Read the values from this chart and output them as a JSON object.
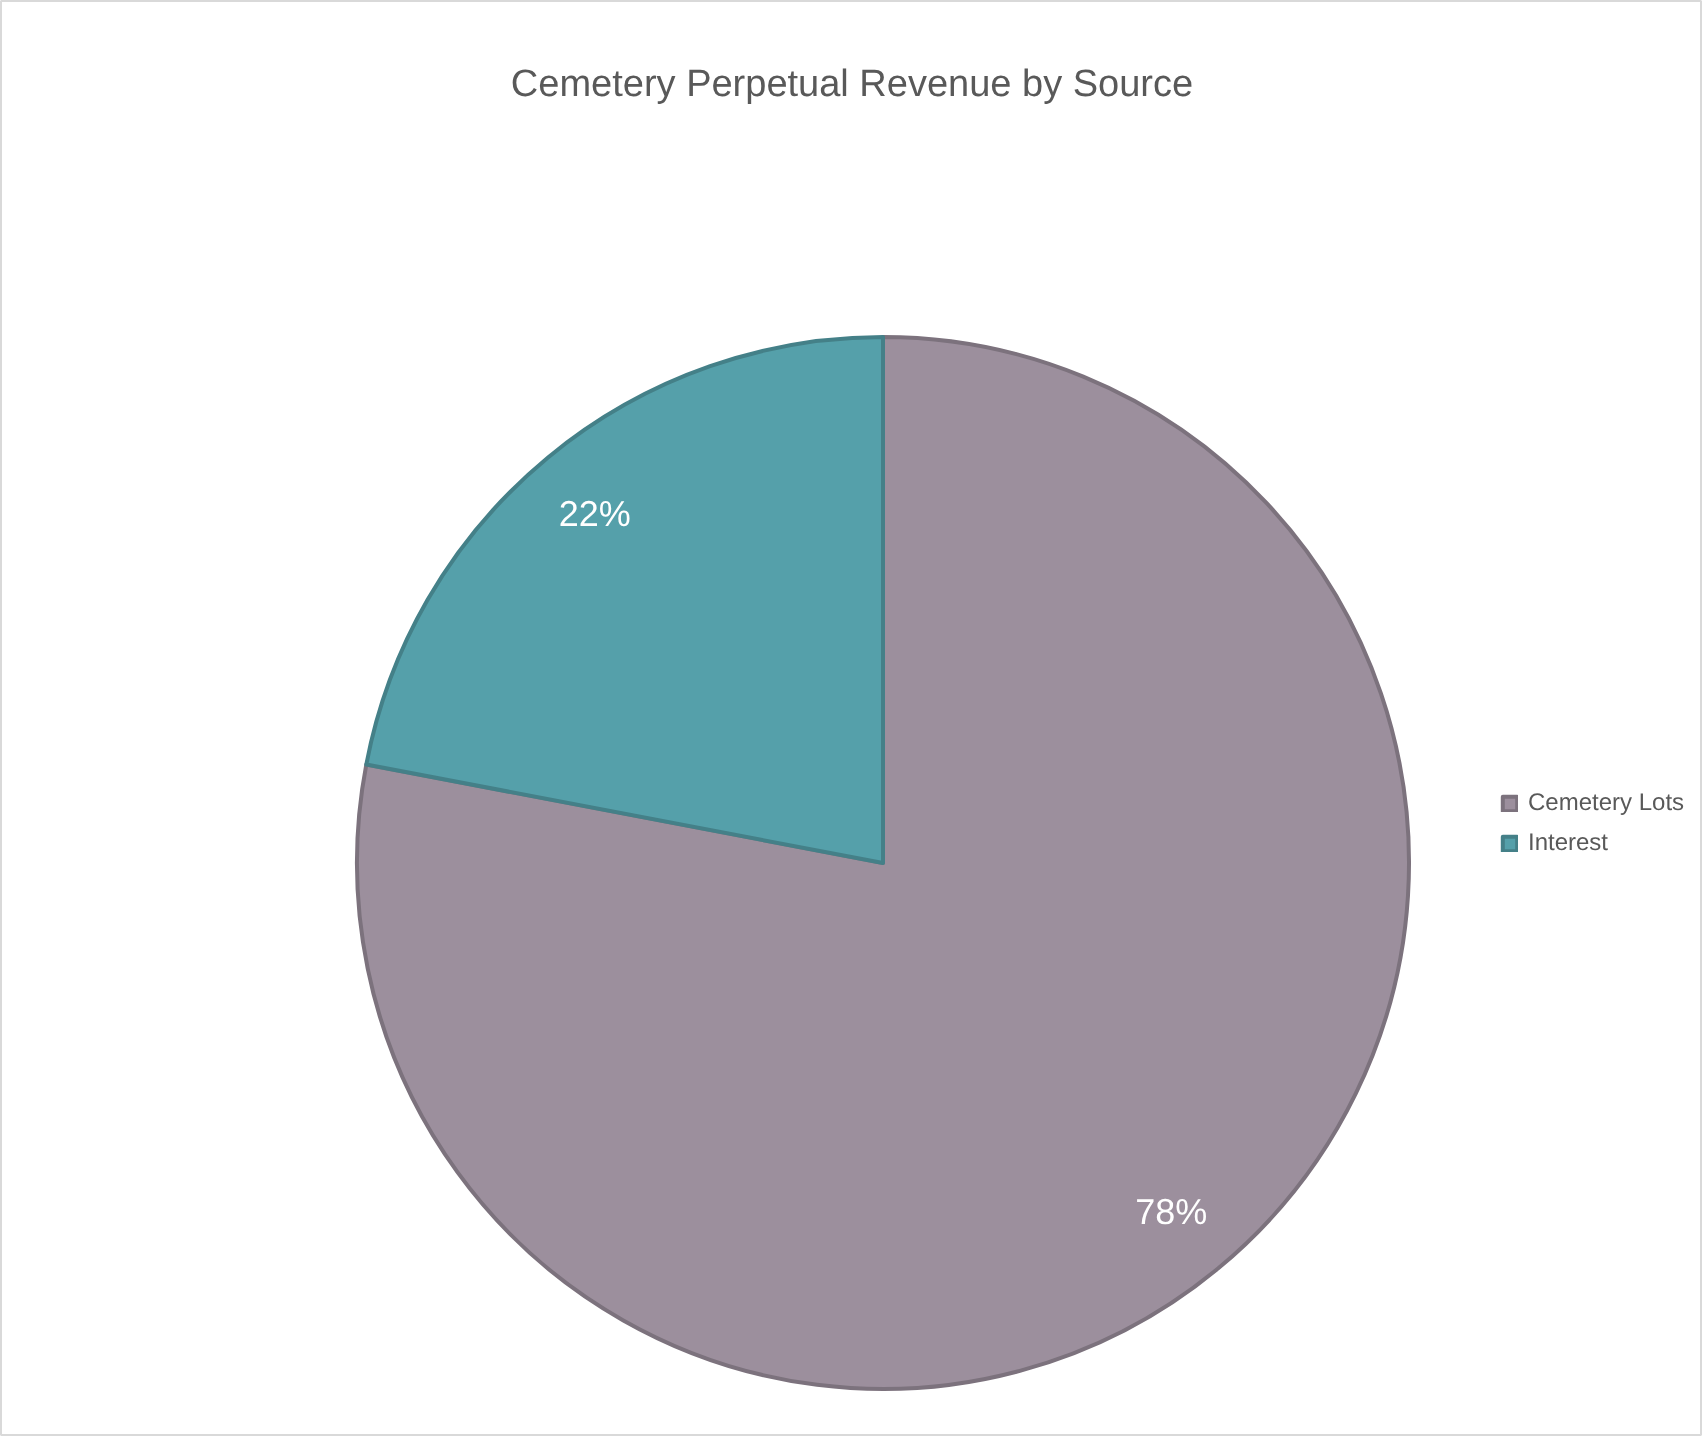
{
  "chart_data": {
    "type": "pie",
    "title": "Cemetery Perpetual Revenue by Source",
    "categories": [
      "Cemetery Lots",
      "Interest"
    ],
    "values": [
      78,
      22
    ],
    "colors": [
      "#9c8f9d",
      "#55a0aa"
    ],
    "value_labels": [
      "78%",
      "22%"
    ],
    "legend": "right"
  }
}
